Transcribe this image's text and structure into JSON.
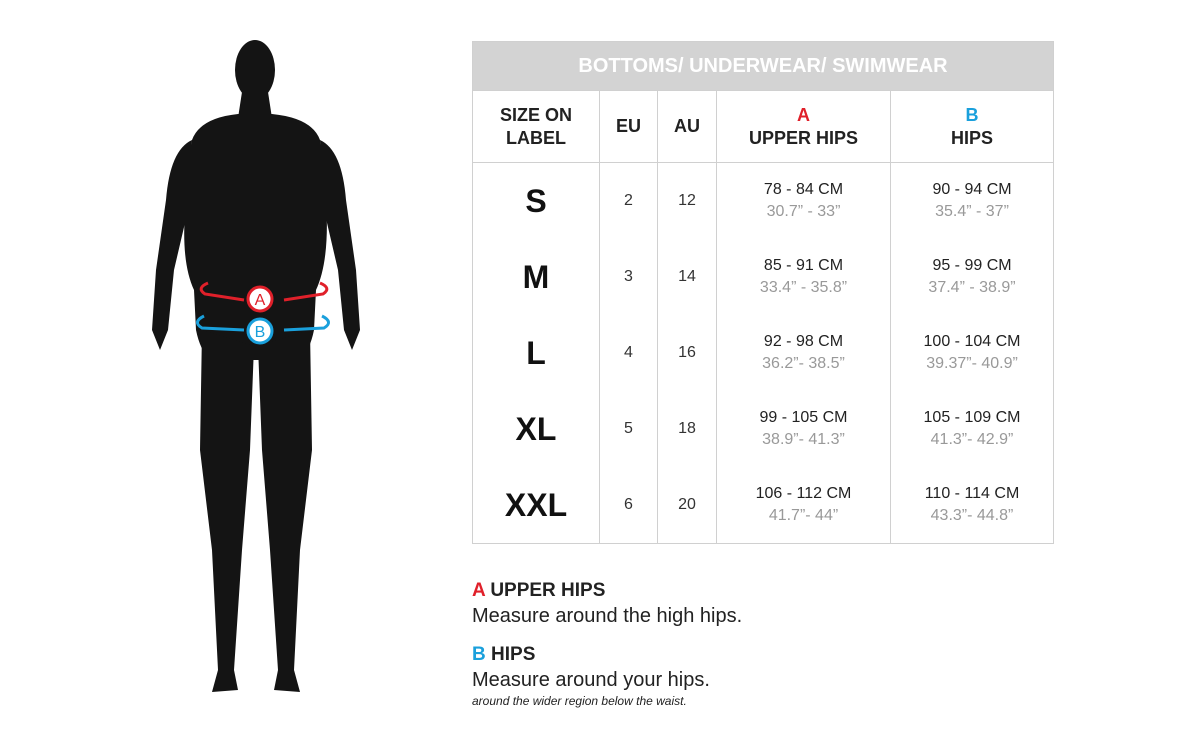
{
  "figure": {
    "marker_a": "A",
    "marker_b": "B",
    "colors": {
      "a": "#e0202a",
      "b": "#1aa0dc"
    }
  },
  "table": {
    "title": "BOTTOMS/ UNDERWEAR/ SWIMWEAR",
    "headers": {
      "size": "SIZE ON LABEL",
      "eu": "EU",
      "au": "AU",
      "a_letter": "A",
      "a_label": "UPPER HIPS",
      "b_letter": "B",
      "b_label": "HIPS"
    },
    "rows": [
      {
        "size": "S",
        "eu": "2",
        "au": "12",
        "a_cm": "78 - 84 CM",
        "a_in": "30.7” - 33”",
        "b_cm": "90 - 94 CM",
        "b_in": "35.4” - 37”"
      },
      {
        "size": "M",
        "eu": "3",
        "au": "14",
        "a_cm": "85 - 91 CM",
        "a_in": "33.4” - 35.8”",
        "b_cm": "95 - 99 CM",
        "b_in": "37.4” - 38.9”"
      },
      {
        "size": "L",
        "eu": "4",
        "au": "16",
        "a_cm": "92 - 98 CM",
        "a_in": "36.2”- 38.5”",
        "b_cm": "100 - 104 CM",
        "b_in": "39.37”- 40.9”"
      },
      {
        "size": "XL",
        "eu": "5",
        "au": "18",
        "a_cm": "99 - 105 CM",
        "a_in": "38.9”- 41.3”",
        "b_cm": "105 - 109 CM",
        "b_in": "41.3”- 42.9”"
      },
      {
        "size": "XXL",
        "eu": "6",
        "au": "20",
        "a_cm": "106 - 112 CM",
        "a_in": "41.7”- 44”",
        "b_cm": "110 - 114 CM",
        "b_in": "43.3”- 44.8”"
      }
    ]
  },
  "legend": {
    "a_letter": "A",
    "a_title": "UPPER HIPS",
    "a_desc": "Measure around the high hips.",
    "b_letter": "B",
    "b_title": "HIPS",
    "b_desc": "Measure around your hips.",
    "b_note": "around the wider region below the waist."
  }
}
